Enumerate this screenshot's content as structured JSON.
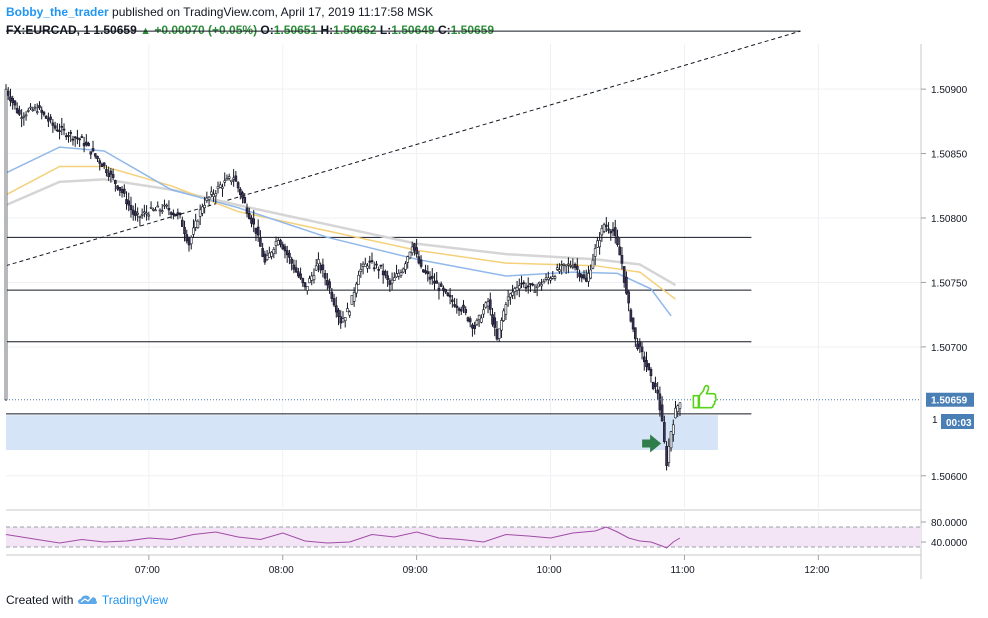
{
  "header": {
    "author": "Bobby_the_trader",
    "published": "published on TradingView.com, April 17, 2019 11:17:58 MSK",
    "symbol": "FX:EURCAD, 1",
    "last": "1.50659",
    "change": "+0.00070 (+0.05%)",
    "o_label": "O:",
    "o": "1.50651",
    "h_label": "H:",
    "h": "1.50662",
    "l_label": "L:",
    "l": "1.50649",
    "c_label": "C:",
    "c": "1.50659"
  },
  "footer": {
    "created_with": "Created with",
    "brand": "TradingView"
  },
  "colors": {
    "blue_ma": "#90b8ea",
    "orange_ma": "#f5d07a",
    "grey_ma": "#d5d5d5",
    "zone": "#d6e4f7",
    "rsi_band": "#f3e5f5",
    "rsi_line": "#a14ca8",
    "arrow": "#2f7d4a",
    "thumb": "#58d31a",
    "price_line": "#4a7fb5"
  },
  "icons": {
    "arrow": "green-right-arrow-icon",
    "thumb": "thumbs-up-icon",
    "logo": "tradingview-cloud-icon"
  },
  "chart_data": {
    "type": "candlestick",
    "symbol": "FX:EURCAD",
    "timeframe": "1",
    "ylim": [
      1.50575,
      1.50935
    ],
    "y_ticks": [
      "1.50900",
      "1.50850",
      "1.50800",
      "1.50750",
      "1.50700",
      "1.50600"
    ],
    "x_ticks": [
      "07:00",
      "08:00",
      "09:00",
      "10:00",
      "11:00",
      "12:00"
    ],
    "x_range_min": [
      -64,
      346
    ],
    "current_price_label": "1.50659",
    "countdown": "00:03",
    "hidden_tick_fragment": "1",
    "horizontal_levels": [
      1.50945,
      1.50785,
      1.50744,
      1.50704,
      1.50648
    ],
    "zone": [
      1.50647,
      1.5062
    ],
    "trendline": [
      {
        "t": -64,
        "p": 1.50763
      },
      {
        "t": 292,
        "p": 1.50945
      }
    ],
    "candle_points": [
      {
        "t": -64,
        "p": 1.509
      },
      {
        "t": -58,
        "p": 1.5088
      },
      {
        "t": -50,
        "p": 1.50885
      },
      {
        "t": -42,
        "p": 1.5087
      },
      {
        "t": -30,
        "p": 1.5086
      },
      {
        "t": -20,
        "p": 1.5084
      },
      {
        "t": -12,
        "p": 1.5082
      },
      {
        "t": -6,
        "p": 1.508
      },
      {
        "t": 0,
        "p": 1.50805
      },
      {
        "t": 8,
        "p": 1.50808
      },
      {
        "t": 14,
        "p": 1.508
      },
      {
        "t": 18,
        "p": 1.5078
      },
      {
        "t": 24,
        "p": 1.5081
      },
      {
        "t": 32,
        "p": 1.50825
      },
      {
        "t": 38,
        "p": 1.50832
      },
      {
        "t": 42,
        "p": 1.50815
      },
      {
        "t": 48,
        "p": 1.5079
      },
      {
        "t": 52,
        "p": 1.50765
      },
      {
        "t": 58,
        "p": 1.50785
      },
      {
        "t": 64,
        "p": 1.50765
      },
      {
        "t": 70,
        "p": 1.50745
      },
      {
        "t": 76,
        "p": 1.50765
      },
      {
        "t": 80,
        "p": 1.5075
      },
      {
        "t": 86,
        "p": 1.5072
      },
      {
        "t": 90,
        "p": 1.5073
      },
      {
        "t": 94,
        "p": 1.50758
      },
      {
        "t": 98,
        "p": 1.50765
      },
      {
        "t": 104,
        "p": 1.5076
      },
      {
        "t": 108,
        "p": 1.50748
      },
      {
        "t": 114,
        "p": 1.50762
      },
      {
        "t": 118,
        "p": 1.5078
      },
      {
        "t": 122,
        "p": 1.5076
      },
      {
        "t": 128,
        "p": 1.5075
      },
      {
        "t": 134,
        "p": 1.50738
      },
      {
        "t": 140,
        "p": 1.5073
      },
      {
        "t": 146,
        "p": 1.50715
      },
      {
        "t": 152,
        "p": 1.50735
      },
      {
        "t": 156,
        "p": 1.50705
      },
      {
        "t": 160,
        "p": 1.50735
      },
      {
        "t": 166,
        "p": 1.5075
      },
      {
        "t": 172,
        "p": 1.50745
      },
      {
        "t": 178,
        "p": 1.50752
      },
      {
        "t": 184,
        "p": 1.5076
      },
      {
        "t": 190,
        "p": 1.50765
      },
      {
        "t": 196,
        "p": 1.5075
      },
      {
        "t": 200,
        "p": 1.50775
      },
      {
        "t": 204,
        "p": 1.50795
      },
      {
        "t": 208,
        "p": 1.5079
      },
      {
        "t": 212,
        "p": 1.50765
      },
      {
        "t": 214,
        "p": 1.5074
      },
      {
        "t": 218,
        "p": 1.50705
      },
      {
        "t": 222,
        "p": 1.5069
      },
      {
        "t": 226,
        "p": 1.5067
      },
      {
        "t": 228,
        "p": 1.50665
      },
      {
        "t": 230,
        "p": 1.5064
      },
      {
        "t": 232,
        "p": 1.5061
      },
      {
        "t": 234,
        "p": 1.50635
      },
      {
        "t": 236,
        "p": 1.5065
      },
      {
        "t": 238,
        "p": 1.50659
      }
    ],
    "ma_blue": [
      {
        "t": -64,
        "p": 1.50835
      },
      {
        "t": -40,
        "p": 1.50855
      },
      {
        "t": -20,
        "p": 1.50852
      },
      {
        "t": 10,
        "p": 1.50822
      },
      {
        "t": 40,
        "p": 1.50808
      },
      {
        "t": 80,
        "p": 1.50785
      },
      {
        "t": 120,
        "p": 1.50768
      },
      {
        "t": 160,
        "p": 1.50755
      },
      {
        "t": 190,
        "p": 1.50758
      },
      {
        "t": 210,
        "p": 1.50757
      },
      {
        "t": 225,
        "p": 1.50745
      },
      {
        "t": 234,
        "p": 1.50724
      }
    ],
    "ma_orange": [
      {
        "t": -64,
        "p": 1.50818
      },
      {
        "t": -40,
        "p": 1.5084
      },
      {
        "t": -20,
        "p": 1.5084
      },
      {
        "t": 10,
        "p": 1.50825
      },
      {
        "t": 40,
        "p": 1.50805
      },
      {
        "t": 80,
        "p": 1.5079
      },
      {
        "t": 120,
        "p": 1.50775
      },
      {
        "t": 160,
        "p": 1.50765
      },
      {
        "t": 200,
        "p": 1.50763
      },
      {
        "t": 220,
        "p": 1.50758
      },
      {
        "t": 236,
        "p": 1.50737
      }
    ],
    "ma_grey": [
      {
        "t": -64,
        "p": 1.5081
      },
      {
        "t": -40,
        "p": 1.50828
      },
      {
        "t": -20,
        "p": 1.5083
      },
      {
        "t": 10,
        "p": 1.50822
      },
      {
        "t": 40,
        "p": 1.5081
      },
      {
        "t": 80,
        "p": 1.50795
      },
      {
        "t": 120,
        "p": 1.5078
      },
      {
        "t": 160,
        "p": 1.50772
      },
      {
        "t": 200,
        "p": 1.50768
      },
      {
        "t": 220,
        "p": 1.50764
      },
      {
        "t": 236,
        "p": 1.50748
      }
    ],
    "rsi": {
      "ylim": [
        20,
        100
      ],
      "y_ticks": [
        "80.0000",
        "40.0000"
      ],
      "upper_band": 70,
      "lower_band": 30,
      "points": [
        {
          "t": -64,
          "p": 55
        },
        {
          "t": -50,
          "p": 45
        },
        {
          "t": -40,
          "p": 38
        },
        {
          "t": -30,
          "p": 45
        },
        {
          "t": -20,
          "p": 40
        },
        {
          "t": -10,
          "p": 42
        },
        {
          "t": 0,
          "p": 48
        },
        {
          "t": 10,
          "p": 45
        },
        {
          "t": 20,
          "p": 55
        },
        {
          "t": 30,
          "p": 60
        },
        {
          "t": 40,
          "p": 50
        },
        {
          "t": 50,
          "p": 45
        },
        {
          "t": 60,
          "p": 58
        },
        {
          "t": 70,
          "p": 42
        },
        {
          "t": 80,
          "p": 38
        },
        {
          "t": 90,
          "p": 40
        },
        {
          "t": 100,
          "p": 55
        },
        {
          "t": 110,
          "p": 50
        },
        {
          "t": 120,
          "p": 60
        },
        {
          "t": 130,
          "p": 48
        },
        {
          "t": 140,
          "p": 45
        },
        {
          "t": 150,
          "p": 40
        },
        {
          "t": 160,
          "p": 55
        },
        {
          "t": 170,
          "p": 52
        },
        {
          "t": 180,
          "p": 48
        },
        {
          "t": 190,
          "p": 58
        },
        {
          "t": 200,
          "p": 62
        },
        {
          "t": 205,
          "p": 70
        },
        {
          "t": 210,
          "p": 60
        },
        {
          "t": 215,
          "p": 48
        },
        {
          "t": 220,
          "p": 42
        },
        {
          "t": 225,
          "p": 40
        },
        {
          "t": 230,
          "p": 32
        },
        {
          "t": 232,
          "p": 28
        },
        {
          "t": 235,
          "p": 40
        },
        {
          "t": 238,
          "p": 48
        }
      ]
    }
  }
}
